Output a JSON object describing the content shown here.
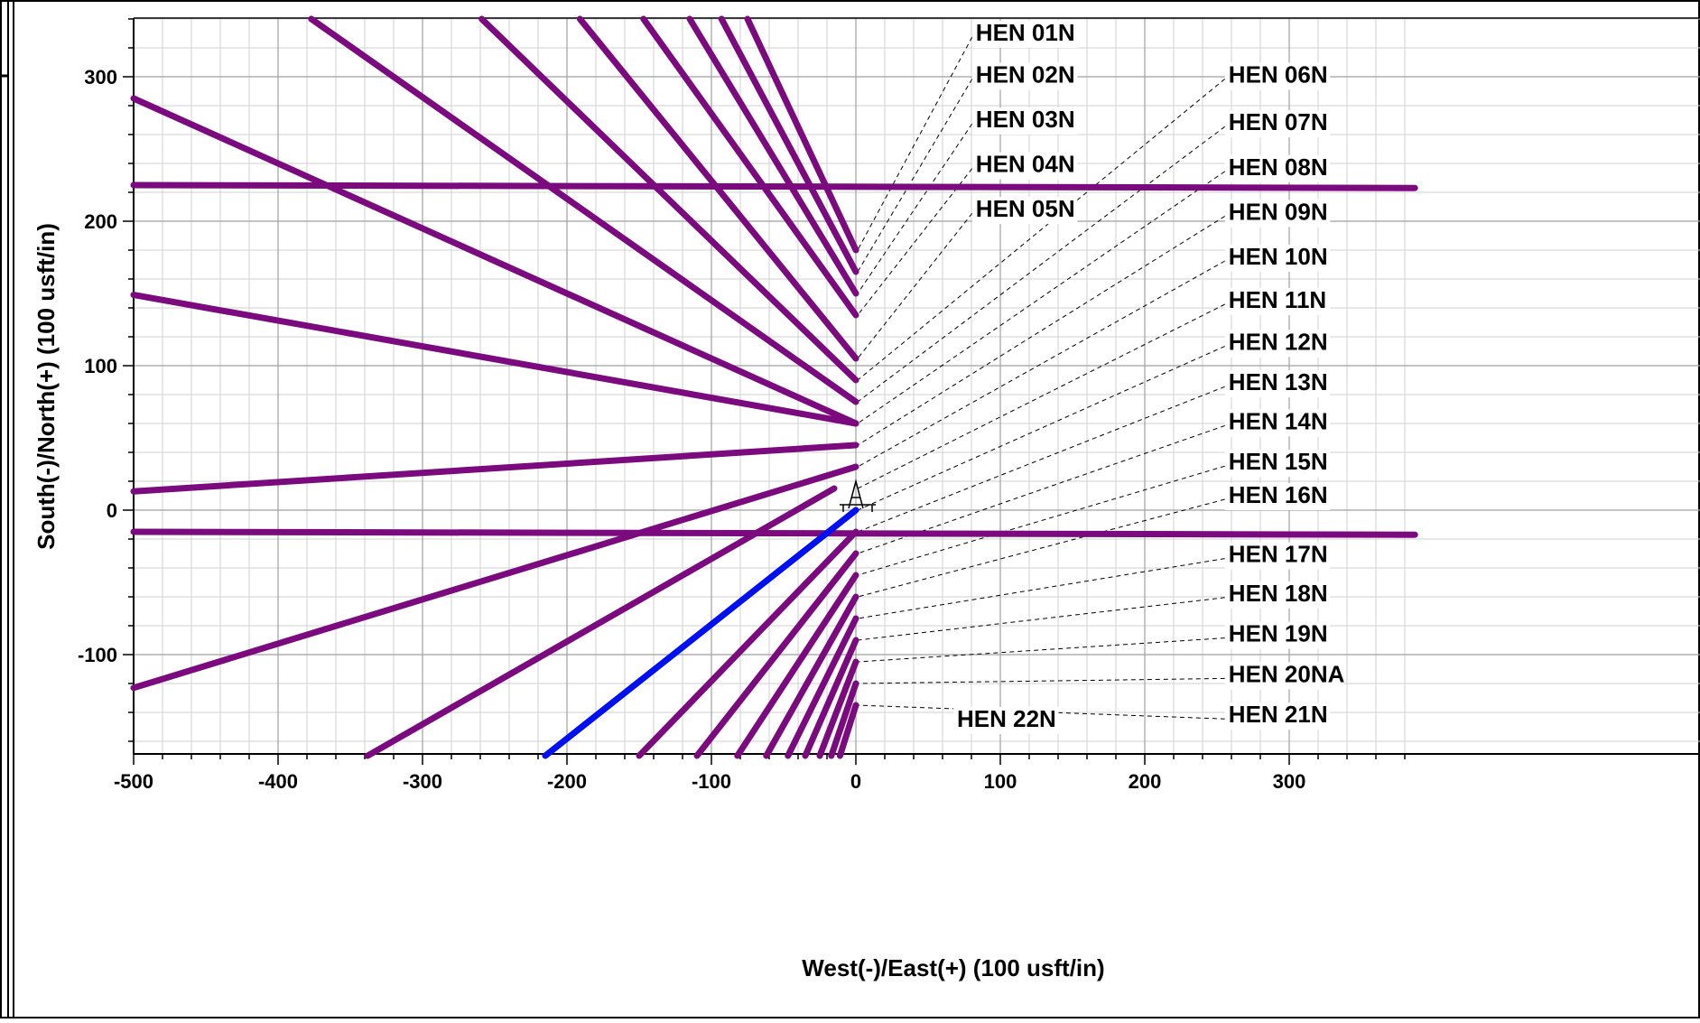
{
  "chart_data": {
    "type": "line",
    "xlabel": "West(-)/East(+) (100 usft/in)",
    "ylabel": "South(-)/North(+) (100 usft/in)",
    "xlim": [
      -500,
      387
    ],
    "ylim": [
      -170,
      340
    ],
    "x_ticks": [
      -500,
      -400,
      -300,
      -200,
      -100,
      0,
      100,
      200,
      300
    ],
    "y_ticks": [
      -100,
      0,
      100,
      200,
      300
    ],
    "grid": true,
    "colors": {
      "well": "#7b0a7f",
      "highlight": "#0010ee",
      "grid": "#b8b8b8",
      "leader": "#000000"
    },
    "wellhead_symbol": "derrick-icon",
    "lines": [
      {
        "points": [
          [
            -75,
            340
          ],
          [
            0,
            180
          ]
        ],
        "color": "#7b0a7f"
      },
      {
        "points": [
          [
            -93,
            340
          ],
          [
            0,
            165
          ]
        ],
        "color": "#7b0a7f"
      },
      {
        "points": [
          [
            -115,
            340
          ],
          [
            0,
            150
          ]
        ],
        "color": "#7b0a7f"
      },
      {
        "points": [
          [
            -147,
            340
          ],
          [
            0,
            135
          ]
        ],
        "color": "#7b0a7f"
      },
      {
        "points": [
          [
            -191,
            340
          ],
          [
            0,
            105
          ]
        ],
        "color": "#7b0a7f"
      },
      {
        "points": [
          [
            -259,
            340
          ],
          [
            0,
            90
          ]
        ],
        "color": "#7b0a7f"
      },
      {
        "points": [
          [
            -377,
            340
          ],
          [
            0,
            75
          ]
        ],
        "color": "#7b0a7f"
      },
      {
        "points": [
          [
            -500,
            285
          ],
          [
            0,
            60
          ]
        ],
        "color": "#7b0a7f"
      },
      {
        "points": [
          [
            -500,
            149
          ],
          [
            0,
            60
          ]
        ],
        "color": "#7b0a7f"
      },
      {
        "points": [
          [
            -500,
            225
          ],
          [
            387,
            223
          ]
        ],
        "color": "#7b0a7f"
      },
      {
        "points": [
          [
            -500,
            13
          ],
          [
            0,
            45
          ]
        ],
        "color": "#7b0a7f"
      },
      {
        "points": [
          [
            -500,
            -123
          ],
          [
            0,
            30
          ]
        ],
        "color": "#7b0a7f"
      },
      {
        "points": [
          [
            -338,
            -170
          ],
          [
            -15,
            15
          ]
        ],
        "color": "#7b0a7f"
      },
      {
        "points": [
          [
            -500,
            -15
          ],
          [
            387,
            -17
          ]
        ],
        "color": "#7b0a7f"
      },
      {
        "points": [
          [
            -215,
            -170
          ],
          [
            0,
            0
          ]
        ],
        "color": "#0010ee"
      },
      {
        "points": [
          [
            -150,
            -170
          ],
          [
            0,
            -15
          ]
        ],
        "color": "#7b0a7f"
      },
      {
        "points": [
          [
            -110,
            -170
          ],
          [
            0,
            -30
          ]
        ],
        "color": "#7b0a7f"
      },
      {
        "points": [
          [
            -82,
            -170
          ],
          [
            0,
            -45
          ]
        ],
        "color": "#7b0a7f"
      },
      {
        "points": [
          [
            -62,
            -170
          ],
          [
            0,
            -60
          ]
        ],
        "color": "#7b0a7f"
      },
      {
        "points": [
          [
            -47,
            -170
          ],
          [
            0,
            -75
          ]
        ],
        "color": "#7b0a7f"
      },
      {
        "points": [
          [
            -35,
            -170
          ],
          [
            0,
            -90
          ]
        ],
        "color": "#7b0a7f"
      },
      {
        "points": [
          [
            -25,
            -170
          ],
          [
            0,
            -105
          ]
        ],
        "color": "#7b0a7f"
      },
      {
        "points": [
          [
            -17,
            -170
          ],
          [
            0,
            -120
          ]
        ],
        "color": "#7b0a7f"
      },
      {
        "points": [
          [
            -11,
            -170
          ],
          [
            0,
            -135
          ]
        ],
        "color": "#7b0a7f"
      }
    ],
    "labels": [
      {
        "text": "HEN 01N",
        "at": [
          83,
          325
        ],
        "end": [
          0,
          180
        ]
      },
      {
        "text": "HEN 02N",
        "at": [
          83,
          296
        ],
        "end": [
          0,
          165
        ]
      },
      {
        "text": "HEN 03N",
        "at": [
          83,
          265
        ],
        "end": [
          0,
          150
        ]
      },
      {
        "text": "HEN 04N",
        "at": [
          83,
          234
        ],
        "end": [
          0,
          135
        ]
      },
      {
        "text": "HEN 05N",
        "at": [
          83,
          203
        ],
        "end": [
          0,
          105
        ]
      },
      {
        "text": "HEN 06N",
        "at": [
          258,
          296
        ],
        "end": [
          0,
          90
        ]
      },
      {
        "text": "HEN 07N",
        "at": [
          258,
          263
        ],
        "end": [
          0,
          75
        ]
      },
      {
        "text": "HEN 08N",
        "at": [
          258,
          232
        ],
        "end": [
          0,
          60
        ]
      },
      {
        "text": "HEN 09N",
        "at": [
          258,
          201
        ],
        "end": [
          0,
          45
        ]
      },
      {
        "text": "HEN 10N",
        "at": [
          258,
          170
        ],
        "end": [
          0,
          30
        ]
      },
      {
        "text": "HEN 11N",
        "at": [
          258,
          140
        ],
        "end": [
          0,
          15
        ]
      },
      {
        "text": "HEN 12N",
        "at": [
          258,
          111
        ],
        "end": [
          0,
          0
        ]
      },
      {
        "text": "HEN 13N",
        "at": [
          258,
          83
        ],
        "end": [
          0,
          -15
        ]
      },
      {
        "text": "HEN 14N",
        "at": [
          258,
          56
        ],
        "end": [
          0,
          -30
        ]
      },
      {
        "text": "HEN 15N",
        "at": [
          258,
          28
        ],
        "end": [
          0,
          -45
        ]
      },
      {
        "text": "HEN 16N",
        "at": [
          258,
          5
        ],
        "end": [
          0,
          -60
        ]
      },
      {
        "text": "HEN 17N",
        "at": [
          258,
          -36
        ],
        "end": [
          0,
          -75
        ]
      },
      {
        "text": "HEN 18N",
        "at": [
          258,
          -63
        ],
        "end": [
          0,
          -90
        ]
      },
      {
        "text": "HEN 19N",
        "at": [
          258,
          -91
        ],
        "end": [
          0,
          -105
        ]
      },
      {
        "text": "HEN 20NA",
        "at": [
          258,
          -119
        ],
        "end": [
          0,
          -120
        ]
      },
      {
        "text": "HEN 21N",
        "at": [
          258,
          -147
        ],
        "end": [
          0,
          -135
        ]
      },
      {
        "text": "HEN 22N",
        "at": [
          70,
          -150
        ],
        "end": null
      }
    ]
  }
}
